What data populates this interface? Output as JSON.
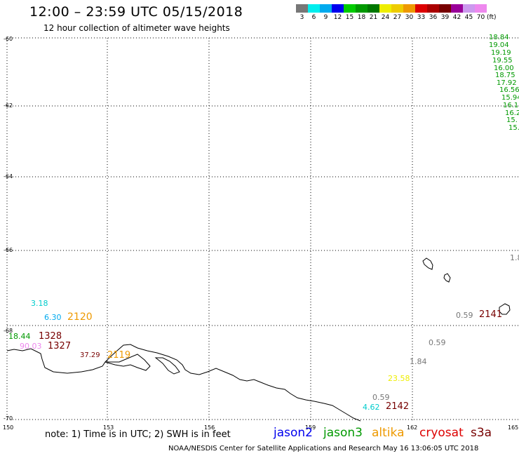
{
  "header": {
    "title": "12:00 – 23:59 UTC 05/15/2018",
    "subtitle": "12 hour collection of altimeter wave heights"
  },
  "scale": {
    "colors": [
      "#777777",
      "#00eeee",
      "#00aaee",
      "#0000ee",
      "#00cc00",
      "#009900",
      "#007700",
      "#eeee00",
      "#eecc00",
      "#ee9900",
      "#dd0000",
      "#aa0000",
      "#770000",
      "#990099",
      "#cc99ee",
      "#ee88ee",
      "#ffffff"
    ],
    "labels": [
      "3",
      "6",
      "9",
      "12",
      "15",
      "18",
      "21",
      "24",
      "27",
      "30",
      "33",
      "36",
      "39",
      "42",
      "45",
      "70",
      "(ft)"
    ]
  },
  "axes": {
    "lat_labels": [
      "-60",
      "-62",
      "-64",
      "-66",
      "-68",
      "-70"
    ],
    "lon_labels": [
      "150",
      "153",
      "156",
      "159",
      "162",
      "165"
    ],
    "grid": true
  },
  "wave_values": [
    {
      "text": "18.84",
      "color": "#009900"
    },
    {
      "text": "19.04",
      "color": "#009900"
    },
    {
      "text": "19.19",
      "color": "#009900"
    },
    {
      "text": "19.55",
      "color": "#009900"
    },
    {
      "text": "16.00",
      "color": "#009900"
    },
    {
      "text": "18.75",
      "color": "#009900"
    },
    {
      "text": "17.92",
      "color": "#009900"
    },
    {
      "text": "16.56",
      "color": "#009900"
    },
    {
      "text": "15.94",
      "color": "#009900"
    },
    {
      "text": "16.1",
      "color": "#009900"
    },
    {
      "text": "16.2",
      "color": "#009900"
    },
    {
      "text": "15.",
      "color": "#009900"
    },
    {
      "text": "15.",
      "color": "#009900"
    },
    {
      "text": "1.8",
      "color": "#777777"
    },
    {
      "text": "3.18",
      "color": "#00cccc"
    },
    {
      "text": "6.30",
      "color": "#00aaee"
    },
    {
      "text": "18.44",
      "color": "#009900"
    },
    {
      "text": "90.03",
      "color": "#ee88ee"
    },
    {
      "text": "37.29",
      "color": "#770000"
    },
    {
      "text": "0.59",
      "color": "#777777"
    },
    {
      "text": "0.59",
      "color": "#777777"
    },
    {
      "text": "1.84",
      "color": "#777777"
    },
    {
      "text": "23.58",
      "color": "#eeee00"
    },
    {
      "text": "0.59",
      "color": "#777777"
    },
    {
      "text": "4.62",
      "color": "#00cccc"
    }
  ],
  "time_values": [
    {
      "text": "2120",
      "color": "#ee9900"
    },
    {
      "text": "1328",
      "color": "#770000"
    },
    {
      "text": "1327",
      "color": "#770000"
    },
    {
      "text": "2119",
      "color": "#ee9900"
    },
    {
      "text": "2141",
      "color": "#770000"
    },
    {
      "text": "2142",
      "color": "#770000"
    }
  ],
  "footer": {
    "note": "note: 1) Time is in UTC; 2) SWH is in feet",
    "legend": [
      {
        "label": "jason2",
        "color": "#0000ee"
      },
      {
        "label": "jason3",
        "color": "#009900"
      },
      {
        "label": "altika",
        "color": "#ee9900"
      },
      {
        "label": "cryosat",
        "color": "#dd0000"
      },
      {
        "label": "s3a",
        "color": "#770000"
      }
    ],
    "credit": "NOAA/NESDIS Center for Satellite Applications and Research      May 16 13:06:05 UTC 2018"
  }
}
